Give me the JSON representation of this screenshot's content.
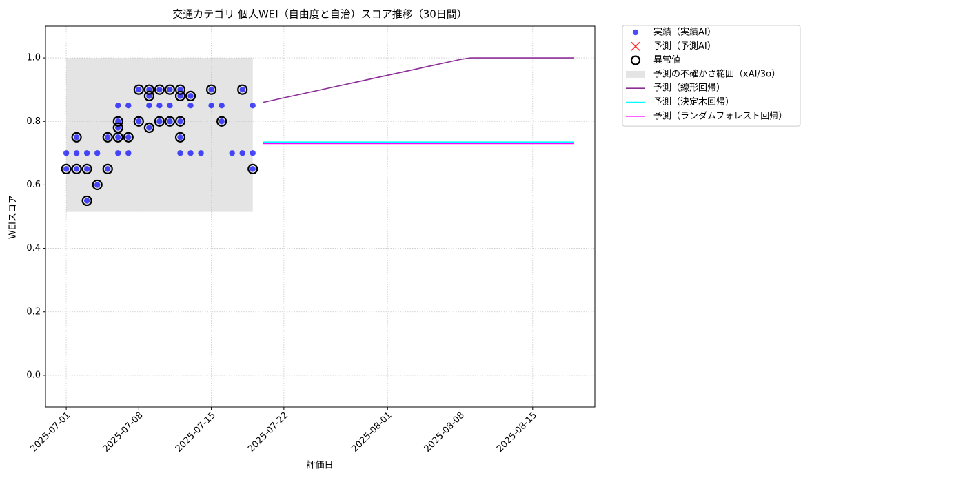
{
  "chart_data": {
    "type": "line",
    "title": "交通カテゴリ 個人WEI（自由度と自治）スコア推移（30日間）",
    "x_label": "評価日",
    "y_label": "WEIスコア",
    "xlim": [
      "2025-06-29",
      "2025-08-21"
    ],
    "xticks": [
      "2025-07-01",
      "2025-07-08",
      "2025-07-15",
      "2025-07-22",
      "2025-08-01",
      "2025-08-08",
      "2025-08-15"
    ],
    "ylim": [
      -0.1,
      1.1
    ],
    "yticks": [
      {
        "value": 0,
        "label": "0.0"
      },
      0.2,
      0.4,
      0.6,
      0.8,
      {
        "value": 1,
        "label": "1.0"
      }
    ],
    "grid": true,
    "legend": "outside-upper-right",
    "series": [
      {
        "name": "実績（実績AI）",
        "type": "scatter",
        "marker": "dot",
        "color": "#0000ff",
        "x": [
          "2025-07-01",
          "2025-07-01",
          "2025-07-02",
          "2025-07-02",
          "2025-07-02",
          "2025-07-03",
          "2025-07-03",
          "2025-07-03",
          "2025-07-04",
          "2025-07-04",
          "2025-07-05",
          "2025-07-05",
          "2025-07-06",
          "2025-07-06",
          "2025-07-06",
          "2025-07-06",
          "2025-07-06",
          "2025-07-07",
          "2025-07-07",
          "2025-07-07",
          "2025-07-08",
          "2025-07-08",
          "2025-07-09",
          "2025-07-09",
          "2025-07-09",
          "2025-07-09",
          "2025-07-10",
          "2025-07-10",
          "2025-07-10",
          "2025-07-11",
          "2025-07-11",
          "2025-07-11",
          "2025-07-12",
          "2025-07-12",
          "2025-07-12",
          "2025-07-12",
          "2025-07-12",
          "2025-07-13",
          "2025-07-13",
          "2025-07-13",
          "2025-07-14",
          "2025-07-15",
          "2025-07-15",
          "2025-07-16",
          "2025-07-16",
          "2025-07-17",
          "2025-07-18",
          "2025-07-18",
          "2025-07-19",
          "2025-07-19",
          "2025-07-19"
        ],
        "values": [
          0.65,
          0.7,
          0.75,
          0.7,
          0.65,
          0.7,
          0.55,
          0.65,
          0.7,
          0.6,
          0.65,
          0.75,
          0.7,
          0.75,
          0.78,
          0.8,
          0.85,
          0.7,
          0.75,
          0.85,
          0.9,
          0.8,
          0.78,
          0.88,
          0.85,
          0.9,
          0.9,
          0.85,
          0.8,
          0.9,
          0.8,
          0.85,
          0.75,
          0.7,
          0.8,
          0.88,
          0.9,
          0.85,
          0.88,
          0.7,
          0.7,
          0.9,
          0.85,
          0.8,
          0.85,
          0.7,
          0.9,
          0.7,
          0.85,
          0.65,
          0.7
        ]
      },
      {
        "name": "予測（予測AI）",
        "type": "scatter",
        "marker": "x",
        "color": "#ff0000",
        "x": [],
        "values": []
      },
      {
        "name": "異常値",
        "type": "scatter",
        "marker": "ring",
        "color": "#000000",
        "x": [
          "2025-07-01",
          "2025-07-02",
          "2025-07-02",
          "2025-07-03",
          "2025-07-03",
          "2025-07-04",
          "2025-07-05",
          "2025-07-05",
          "2025-07-06",
          "2025-07-06",
          "2025-07-06",
          "2025-07-07",
          "2025-07-08",
          "2025-07-08",
          "2025-07-09",
          "2025-07-09",
          "2025-07-09",
          "2025-07-10",
          "2025-07-10",
          "2025-07-11",
          "2025-07-11",
          "2025-07-12",
          "2025-07-12",
          "2025-07-12",
          "2025-07-12",
          "2025-07-13",
          "2025-07-15",
          "2025-07-16",
          "2025-07-18",
          "2025-07-19"
        ],
        "values": [
          0.65,
          0.75,
          0.65,
          0.55,
          0.65,
          0.6,
          0.65,
          0.75,
          0.75,
          0.78,
          0.8,
          0.75,
          0.9,
          0.8,
          0.78,
          0.88,
          0.9,
          0.9,
          0.8,
          0.9,
          0.8,
          0.75,
          0.8,
          0.88,
          0.9,
          0.88,
          0.9,
          0.8,
          0.9,
          0.65
        ]
      },
      {
        "name": "予測の不確かさ範囲（xAI/3σ）",
        "type": "band",
        "color": "#bbbbbb",
        "x": [
          "2025-07-01",
          "2025-07-19"
        ],
        "lower": [
          0.515,
          0.515
        ],
        "upper": [
          1.0,
          1.0
        ]
      },
      {
        "name": "予測（線形回帰）",
        "type": "line",
        "color": "#8b2f97",
        "x": [
          "2025-07-20",
          "2025-08-08",
          "2025-08-09",
          "2025-08-19"
        ],
        "values": [
          0.86,
          0.995,
          1.0,
          1.0
        ]
      },
      {
        "name": "予測（決定木回帰）",
        "type": "line",
        "color": "#00ffff",
        "x": [
          "2025-07-20",
          "2025-08-19"
        ],
        "values": [
          0.735,
          0.735
        ]
      },
      {
        "name": "予測（ランダムフォレスト回帰）",
        "type": "line",
        "color": "#ff00ff",
        "x": [
          "2025-07-20",
          "2025-08-19"
        ],
        "values": [
          0.73,
          0.73
        ]
      }
    ]
  }
}
